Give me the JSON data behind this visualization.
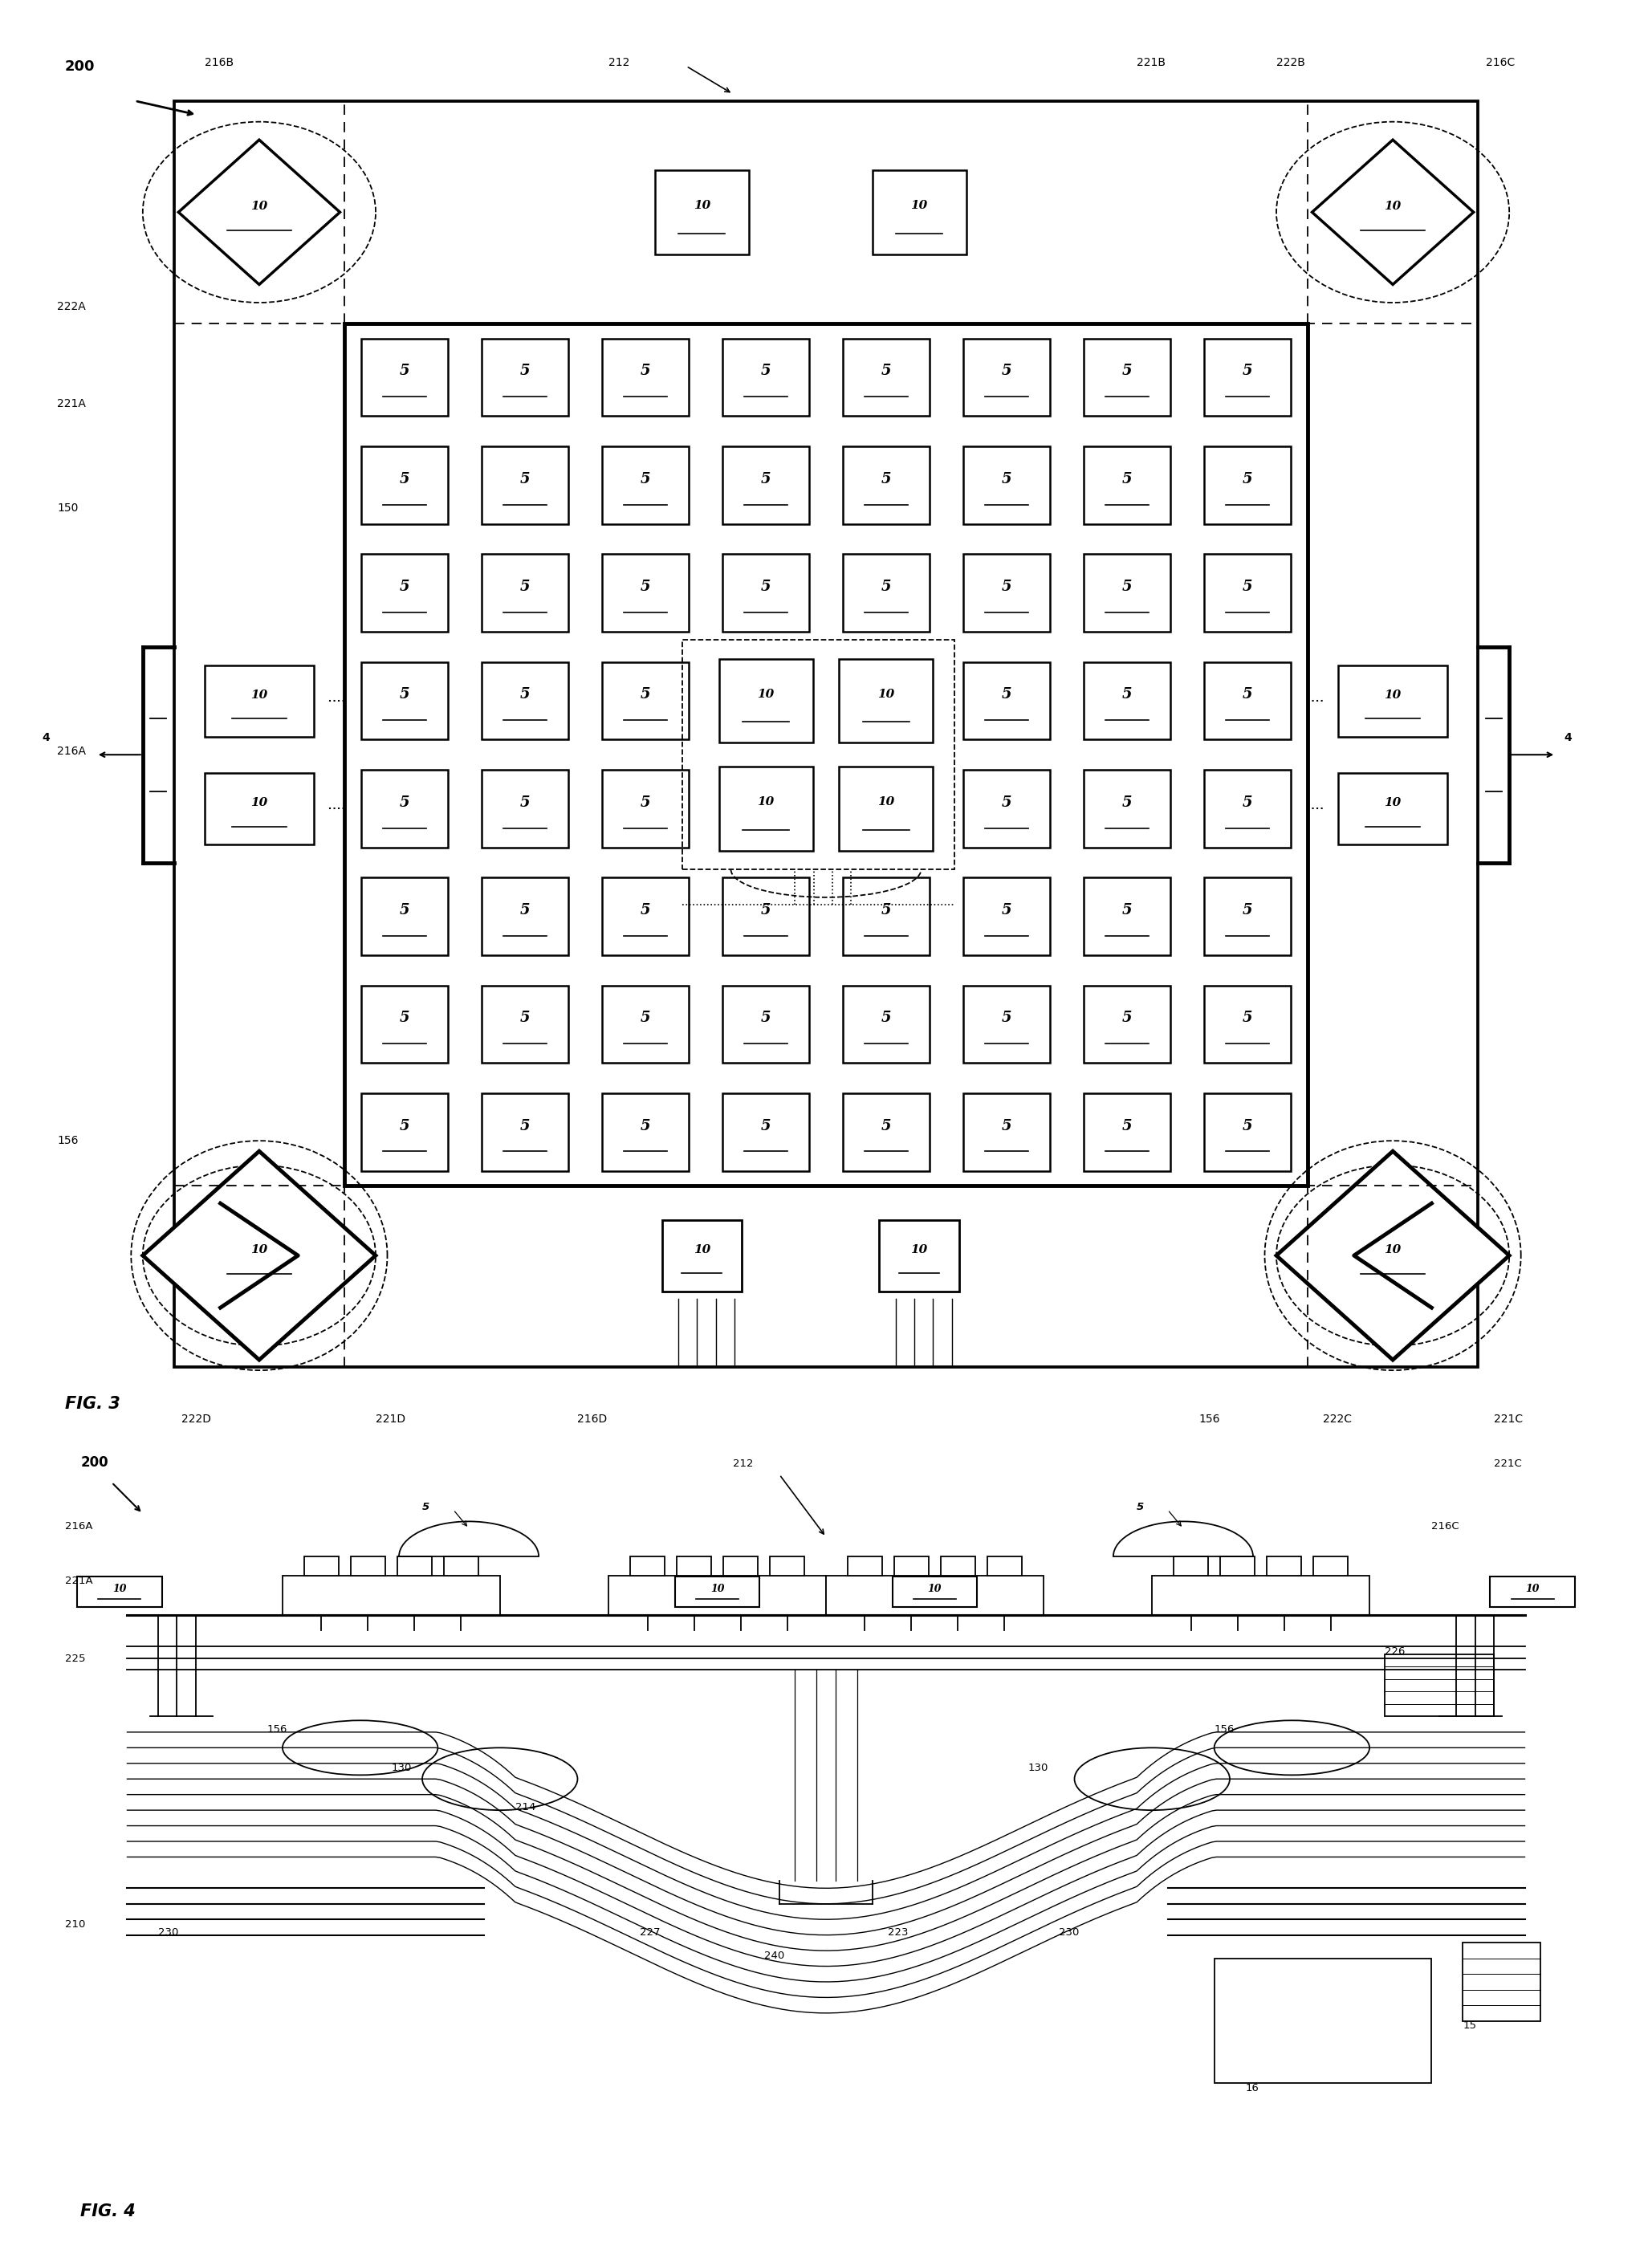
{
  "fig_width": 20.58,
  "fig_height": 28.18,
  "bg_color": "#ffffff",
  "lw_main": 2.2,
  "lw_thin": 1.3,
  "lw_thick": 3.5,
  "fig3_labels": {
    "200": "200",
    "216B": "216B",
    "212": "212",
    "221B": "221B",
    "222B": "222B",
    "216C": "216C",
    "222A": "222A",
    "221A": "221A",
    "150": "150",
    "216A": "216A",
    "4L": "4",
    "4R": "4",
    "156L": "156",
    "156bot": "156",
    "222D": "222D",
    "221D": "221D",
    "216D": "216D",
    "222C": "222C",
    "221C": "221C",
    "FIG3": "FIG. 3"
  },
  "fig4_labels": {
    "200": "200",
    "212": "212",
    "221C": "221C",
    "216A": "216A",
    "216C": "216C",
    "221A": "221A",
    "225": "225",
    "210": "210",
    "230a": "230",
    "214": "214",
    "227": "227",
    "240": "240",
    "223": "223",
    "230b": "230",
    "16": "16",
    "226": "226",
    "15": "15",
    "130a": "130",
    "156a": "156",
    "130b": "130",
    "156b": "156",
    "5a": "5",
    "5b": "5",
    "FIG4": "FIG. 4"
  }
}
